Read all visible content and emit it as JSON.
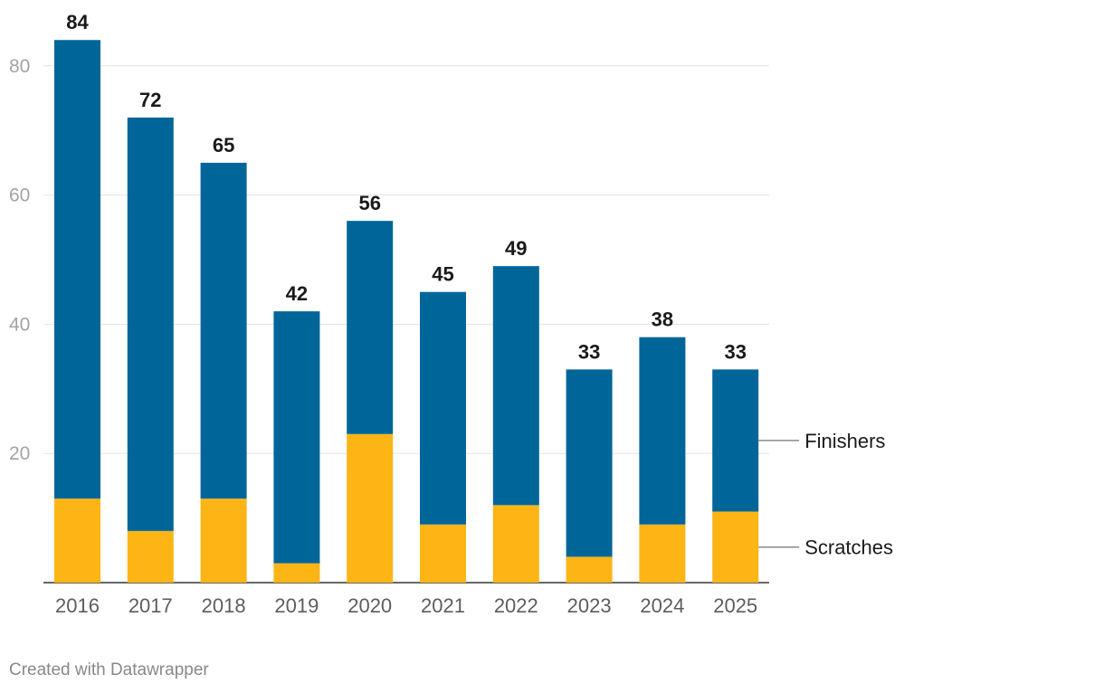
{
  "chart_data": {
    "type": "bar",
    "stacked": true,
    "categories": [
      "2016",
      "2017",
      "2018",
      "2019",
      "2020",
      "2021",
      "2022",
      "2023",
      "2024",
      "2025"
    ],
    "series": [
      {
        "name": "Scratches",
        "color": "#fdb515",
        "values": [
          13,
          8,
          13,
          3,
          23,
          9,
          12,
          4,
          9,
          11
        ]
      },
      {
        "name": "Finishers",
        "color": "#006699",
        "values": [
          71,
          64,
          52,
          39,
          33,
          36,
          37,
          29,
          29,
          22
        ]
      }
    ],
    "totals": [
      84,
      72,
      65,
      42,
      56,
      45,
      49,
      33,
      38,
      33
    ],
    "y_ticks": [
      20,
      40,
      60,
      80
    ],
    "ylim": [
      0,
      84
    ],
    "grid": true,
    "legend": "right, inline labels",
    "title": "",
    "xlabel": "",
    "ylabel": ""
  },
  "footer": "Created with Datawrapper"
}
